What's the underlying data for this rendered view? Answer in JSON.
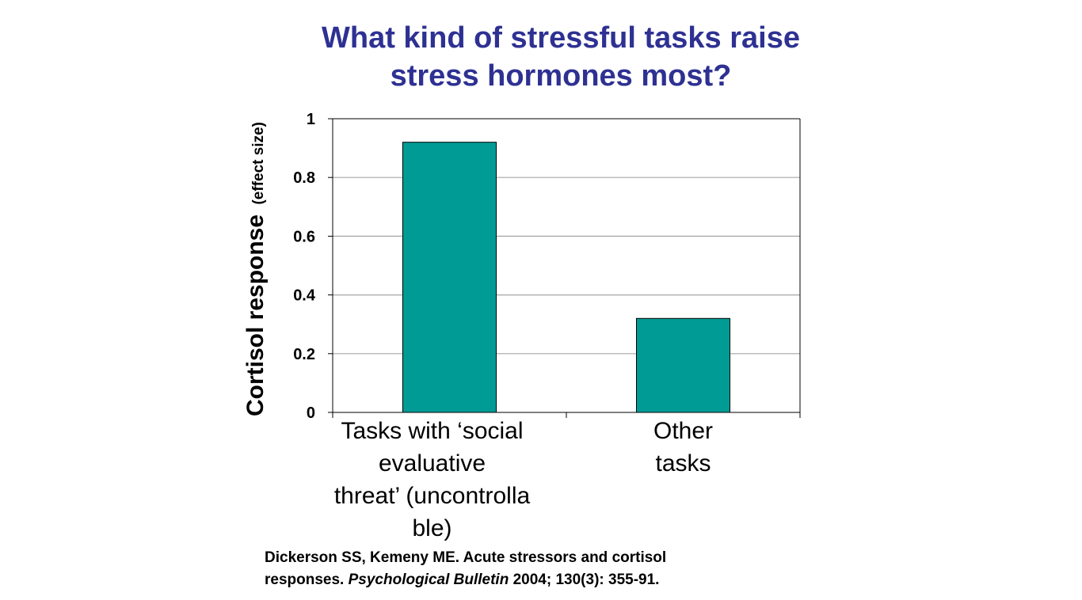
{
  "slide": {
    "title_lines": [
      "What kind of stressful tasks raise",
      "stress hormones most?"
    ],
    "title_color": "#2e3192",
    "citation": {
      "line1": "Dickerson SS, Kemeny ME. Acute stressors and cortisol",
      "line2_prefix": "responses. ",
      "line2_journal": "Psychological Bulletin",
      "line2_suffix": " 2004; 130(3): 355-91."
    }
  },
  "chart_data": {
    "type": "bar",
    "categories": [
      [
        "Tasks with ‘social",
        "evaluative",
        "threat’ (uncontrolla",
        "ble)"
      ],
      [
        "Other",
        "tasks"
      ]
    ],
    "values": [
      0.92,
      0.32
    ],
    "ylabel_main": "Cortisol response",
    "ylabel_sub": "(effect size)",
    "ylim": [
      0,
      1
    ],
    "yticks": [
      "0",
      "0.2",
      "0.4",
      "0.6",
      "0.8",
      "1"
    ],
    "grid": true,
    "legend": "none",
    "bar_color": "#009b95"
  }
}
